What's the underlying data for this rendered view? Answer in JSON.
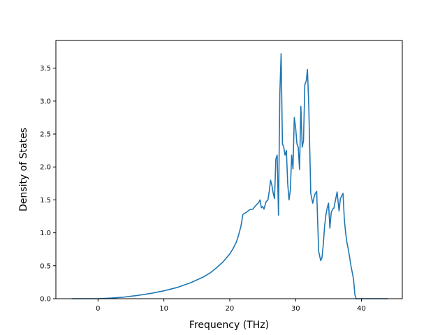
{
  "chart_data": {
    "type": "line",
    "title": "",
    "xlabel": "Frequency (THz)",
    "ylabel": "Density of States",
    "xlim": [
      -6.4,
      46.2
    ],
    "ylim": [
      0.0,
      3.92
    ],
    "x_ticks": [
      0,
      10,
      20,
      30,
      40
    ],
    "x_tick_labels": [
      "0",
      "10",
      "20",
      "30",
      "40"
    ],
    "y_ticks": [
      0.0,
      0.5,
      1.0,
      1.5,
      2.0,
      2.5,
      3.0,
      3.5
    ],
    "y_tick_labels": [
      "0.0",
      "0.5",
      "1.0",
      "1.5",
      "2.0",
      "2.5",
      "3.0",
      "3.5"
    ],
    "grid": false,
    "legend": "none",
    "series": [
      {
        "color": "#1f77b4",
        "x": [
          -4.0,
          -2.0,
          0.0,
          2.0,
          4.0,
          6.0,
          8.0,
          10.0,
          12.0,
          14.0,
          16.0,
          17.0,
          18.0,
          19.0,
          20.0,
          20.5,
          21.0,
          21.3,
          21.7,
          22.0,
          22.5,
          23.0,
          23.5,
          24.0,
          24.2,
          24.4,
          24.6,
          24.8,
          25.0,
          25.2,
          25.5,
          25.8,
          26.0,
          26.2,
          26.4,
          26.6,
          26.8,
          27.0,
          27.2,
          27.4,
          27.6,
          27.8,
          28.0,
          28.2,
          28.4,
          28.6,
          28.8,
          29.0,
          29.2,
          29.4,
          29.6,
          29.8,
          30.0,
          30.2,
          30.4,
          30.6,
          30.8,
          31.0,
          31.2,
          31.4,
          31.6,
          31.8,
          32.0,
          32.3,
          32.6,
          32.9,
          33.2,
          33.5,
          33.8,
          34.0,
          34.2,
          34.4,
          34.6,
          34.8,
          35.0,
          35.2,
          35.4,
          35.6,
          35.8,
          36.0,
          36.3,
          36.6,
          36.8,
          37.0,
          37.2,
          37.4,
          37.6,
          37.8,
          38.0,
          38.2,
          38.4,
          38.6,
          38.8,
          39.0,
          39.2,
          39.4,
          39.6,
          39.8,
          40.0,
          42.0,
          44.0
        ],
        "values": [
          0.0,
          0.0,
          0.0,
          0.01,
          0.025,
          0.05,
          0.08,
          0.12,
          0.17,
          0.24,
          0.33,
          0.39,
          0.47,
          0.56,
          0.68,
          0.76,
          0.86,
          0.95,
          1.1,
          1.28,
          1.31,
          1.35,
          1.36,
          1.42,
          1.44,
          1.46,
          1.5,
          1.38,
          1.4,
          1.36,
          1.47,
          1.5,
          1.63,
          1.8,
          1.72,
          1.6,
          1.52,
          2.12,
          2.18,
          1.27,
          3.1,
          3.72,
          2.35,
          2.3,
          2.18,
          2.25,
          1.75,
          1.5,
          1.65,
          2.18,
          1.97,
          2.75,
          2.6,
          2.35,
          2.3,
          1.96,
          2.92,
          2.3,
          2.4,
          3.25,
          3.3,
          3.48,
          2.92,
          1.6,
          1.45,
          1.58,
          1.63,
          0.72,
          0.58,
          0.62,
          0.82,
          1.1,
          1.27,
          1.38,
          1.45,
          1.07,
          1.3,
          1.36,
          1.37,
          1.47,
          1.62,
          1.33,
          1.52,
          1.56,
          1.6,
          1.2,
          1.0,
          0.85,
          0.75,
          0.63,
          0.5,
          0.4,
          0.29,
          0.06,
          0.0,
          0.0,
          0.0,
          0.0,
          0.0,
          0.0,
          0.0
        ]
      }
    ]
  }
}
